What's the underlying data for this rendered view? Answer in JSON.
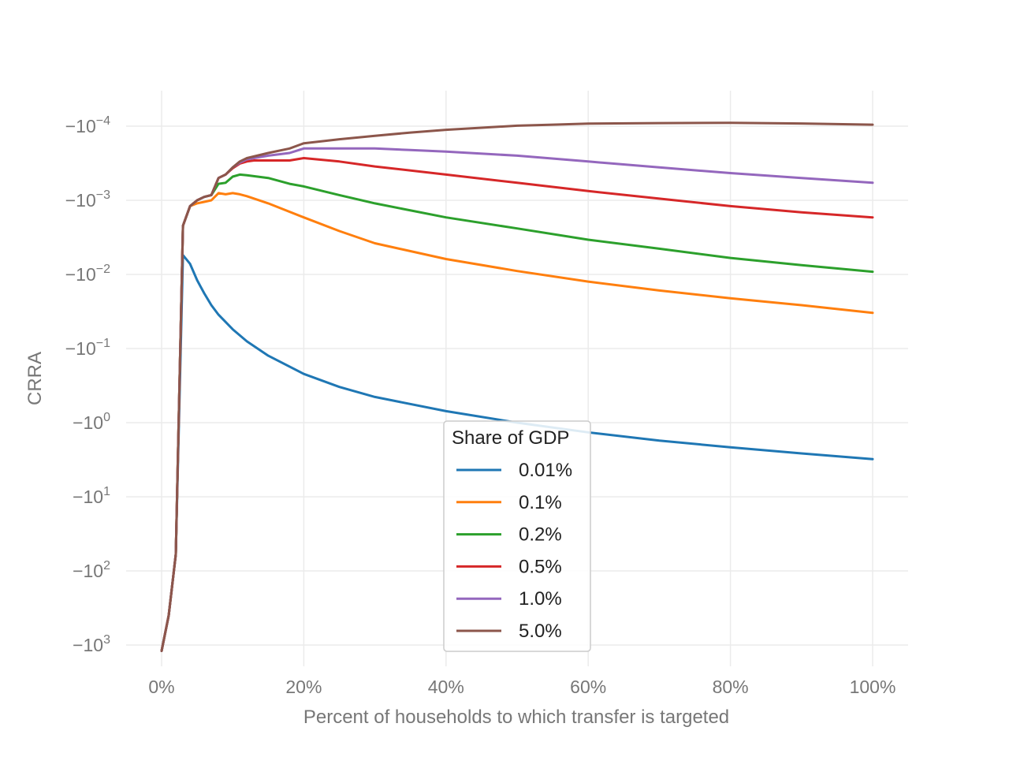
{
  "chart_data": {
    "type": "line",
    "title": "",
    "xlabel": "Percent of households to which transfer is targeted",
    "ylabel": "CRRA",
    "x_scale": "linear",
    "y_scale": "symlog (negative values)",
    "xlim": [
      -5,
      105
    ],
    "x_ticks": [
      {
        "value": 0,
        "label": "0%"
      },
      {
        "value": 20,
        "label": "20%"
      },
      {
        "value": 40,
        "label": "40%"
      },
      {
        "value": 60,
        "label": "60%"
      },
      {
        "value": 80,
        "label": "80%"
      },
      {
        "value": 100,
        "label": "100%"
      }
    ],
    "y_ticks": [
      {
        "value": -0.0001,
        "base": "−10",
        "exp": "−4"
      },
      {
        "value": -0.001,
        "base": "−10",
        "exp": "−3"
      },
      {
        "value": -0.01,
        "base": "−10",
        "exp": "−2"
      },
      {
        "value": -0.1,
        "base": "−10",
        "exp": "−1"
      },
      {
        "value": -1,
        "base": "−10",
        "exp": "0"
      },
      {
        "value": -10,
        "base": "−10",
        "exp": "1"
      },
      {
        "value": -100,
        "base": "−10",
        "exp": "2"
      },
      {
        "value": -1000,
        "base": "−10",
        "exp": "3"
      }
    ],
    "grid": true,
    "legend": {
      "title": "Share of GDP",
      "placement": "lower-center"
    },
    "series": [
      {
        "name": "0.01%",
        "color": "#1f77b4",
        "x": [
          0,
          1,
          2,
          3,
          4,
          5,
          6,
          7,
          8,
          10,
          12,
          15,
          20,
          25,
          30,
          40,
          50,
          60,
          70,
          80,
          90,
          100
        ],
        "y": [
          -1200,
          -400,
          -60,
          -0.0055,
          -0.0072,
          -0.012,
          -0.018,
          -0.026,
          -0.035,
          -0.055,
          -0.08,
          -0.125,
          -0.22,
          -0.33,
          -0.45,
          -0.7,
          -1.0,
          -1.35,
          -1.75,
          -2.15,
          -2.6,
          -3.1
        ]
      },
      {
        "name": "0.1%",
        "color": "#ff7f0e",
        "x": [
          0,
          1,
          2,
          3,
          4,
          5,
          6,
          7,
          8,
          9,
          10,
          11,
          12,
          15,
          20,
          25,
          30,
          40,
          50,
          60,
          70,
          80,
          90,
          100
        ],
        "y": [
          -1200,
          -400,
          -60,
          -0.0022,
          -0.0012,
          -0.0011,
          -0.00105,
          -0.001,
          -0.0008,
          -0.00083,
          -0.0008,
          -0.00083,
          -0.00088,
          -0.0011,
          -0.0017,
          -0.0026,
          -0.0038,
          -0.0062,
          -0.009,
          -0.0125,
          -0.0165,
          -0.021,
          -0.026,
          -0.033
        ]
      },
      {
        "name": "0.2%",
        "color": "#2ca02c",
        "x": [
          0,
          1,
          2,
          3,
          4,
          5,
          6,
          7,
          8,
          9,
          10,
          11,
          12,
          15,
          18,
          20,
          25,
          30,
          40,
          50,
          60,
          70,
          80,
          90,
          100
        ],
        "y": [
          -1200,
          -400,
          -60,
          -0.0022,
          -0.0012,
          -0.001,
          -0.0009,
          -0.00085,
          -0.0006,
          -0.00058,
          -0.00048,
          -0.00045,
          -0.00046,
          -0.0005,
          -0.0006,
          -0.00065,
          -0.00085,
          -0.0011,
          -0.0017,
          -0.0024,
          -0.0034,
          -0.0045,
          -0.006,
          -0.0075,
          -0.0092
        ]
      },
      {
        "name": "0.5%",
        "color": "#d62728",
        "x": [
          0,
          1,
          2,
          3,
          4,
          5,
          6,
          7,
          8,
          9,
          10,
          11,
          12,
          13,
          15,
          18,
          20,
          25,
          30,
          40,
          50,
          60,
          70,
          80,
          90,
          100
        ],
        "y": [
          -1200,
          -400,
          -60,
          -0.0022,
          -0.0012,
          -0.001,
          -0.0009,
          -0.00085,
          -0.0005,
          -0.00045,
          -0.00037,
          -0.00032,
          -0.0003,
          -0.00029,
          -0.00029,
          -0.00029,
          -0.00027,
          -0.0003,
          -0.00035,
          -0.00045,
          -0.00058,
          -0.00075,
          -0.00095,
          -0.0012,
          -0.00145,
          -0.0017
        ]
      },
      {
        "name": "1.0%",
        "color": "#9467bd",
        "x": [
          0,
          1,
          2,
          3,
          4,
          5,
          6,
          7,
          8,
          9,
          10,
          11,
          12,
          15,
          18,
          20,
          25,
          30,
          35,
          40,
          50,
          60,
          70,
          80,
          90,
          100
        ],
        "y": [
          -1200,
          -400,
          -60,
          -0.0022,
          -0.0012,
          -0.001,
          -0.0009,
          -0.00085,
          -0.0005,
          -0.00045,
          -0.00036,
          -0.00031,
          -0.00028,
          -0.00025,
          -0.00023,
          -0.0002,
          -0.0002,
          -0.0002,
          -0.00021,
          -0.00022,
          -0.00025,
          -0.0003,
          -0.00036,
          -0.00043,
          -0.0005,
          -0.00058
        ]
      },
      {
        "name": "5.0%",
        "color": "#8c564b",
        "x": [
          0,
          1,
          2,
          3,
          4,
          5,
          6,
          7,
          8,
          9,
          10,
          11,
          12,
          15,
          18,
          20,
          25,
          30,
          35,
          40,
          45,
          50,
          55,
          60,
          70,
          80,
          90,
          100
        ],
        "y": [
          -1200,
          -400,
          -60,
          -0.0022,
          -0.0012,
          -0.001,
          -0.0009,
          -0.00085,
          -0.0005,
          -0.00045,
          -0.00036,
          -0.0003,
          -0.00027,
          -0.00023,
          -0.0002,
          -0.00017,
          -0.00015,
          -0.000135,
          -0.000122,
          -0.000112,
          -0.000105,
          -9.85e-05,
          -9.55e-05,
          -9.25e-05,
          -9.1e-05,
          -9e-05,
          -9.2e-05,
          -9.55e-05
        ]
      }
    ]
  }
}
